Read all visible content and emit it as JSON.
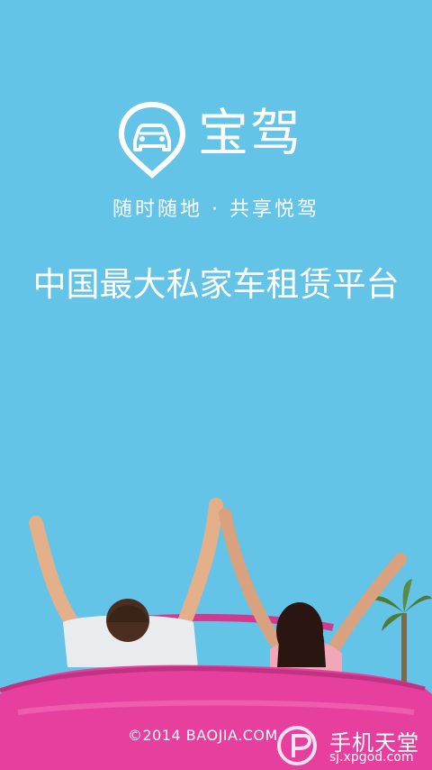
{
  "app": {
    "brand_name": "宝驾",
    "slogan": "随时随地 · 共享悦驾",
    "headline": "中国最大私家车租赁平台",
    "copyright": "©2014 BAOJIA.COM"
  },
  "watermark": {
    "title": "手机天堂",
    "url": "sj.xpgod.com"
  },
  "colors": {
    "background": "#63c4e8",
    "car_body": "#e73f9e",
    "text": "#ffffff"
  },
  "icons": {
    "logo": "car-pin-icon",
    "watermark": "xpgod-logo-icon"
  }
}
